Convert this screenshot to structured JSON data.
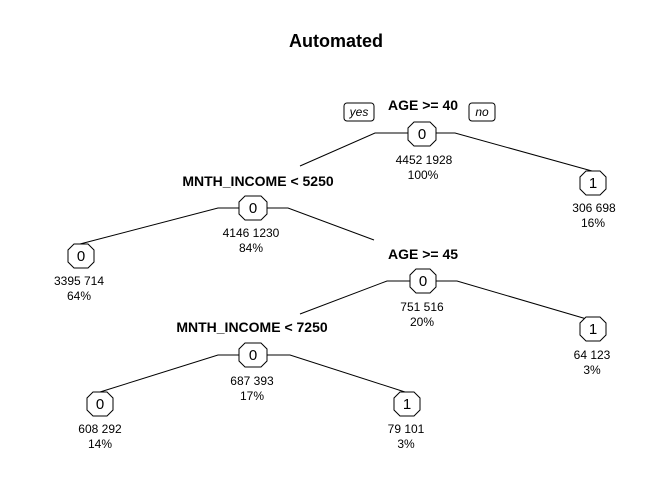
{
  "title": "Automated",
  "labels": {
    "yes": "yes",
    "no": "no"
  },
  "nodes": [
    {
      "id": "n1",
      "class": "0",
      "counts": "4452  1928",
      "pct": "100%",
      "split": "AGE >= 40"
    },
    {
      "id": "n2",
      "class": "0",
      "counts": "4146  1230",
      "pct": "84%",
      "split": "MNTH_INCOME < 5250"
    },
    {
      "id": "n3",
      "class": "1",
      "counts": "306  698",
      "pct": "16%"
    },
    {
      "id": "n4",
      "class": "0",
      "counts": "3395  714",
      "pct": "64%"
    },
    {
      "id": "n5",
      "class": "0",
      "counts": "751  516",
      "pct": "20%",
      "split": "AGE >= 45"
    },
    {
      "id": "n6",
      "class": "0",
      "counts": "687  393",
      "pct": "17%",
      "split": "MNTH_INCOME < 7250"
    },
    {
      "id": "n7",
      "class": "1",
      "counts": "64  123",
      "pct": "3%"
    },
    {
      "id": "n8",
      "class": "0",
      "counts": "608  292",
      "pct": "14%"
    },
    {
      "id": "n9",
      "class": "1",
      "counts": "79  101",
      "pct": "3%"
    }
  ]
}
